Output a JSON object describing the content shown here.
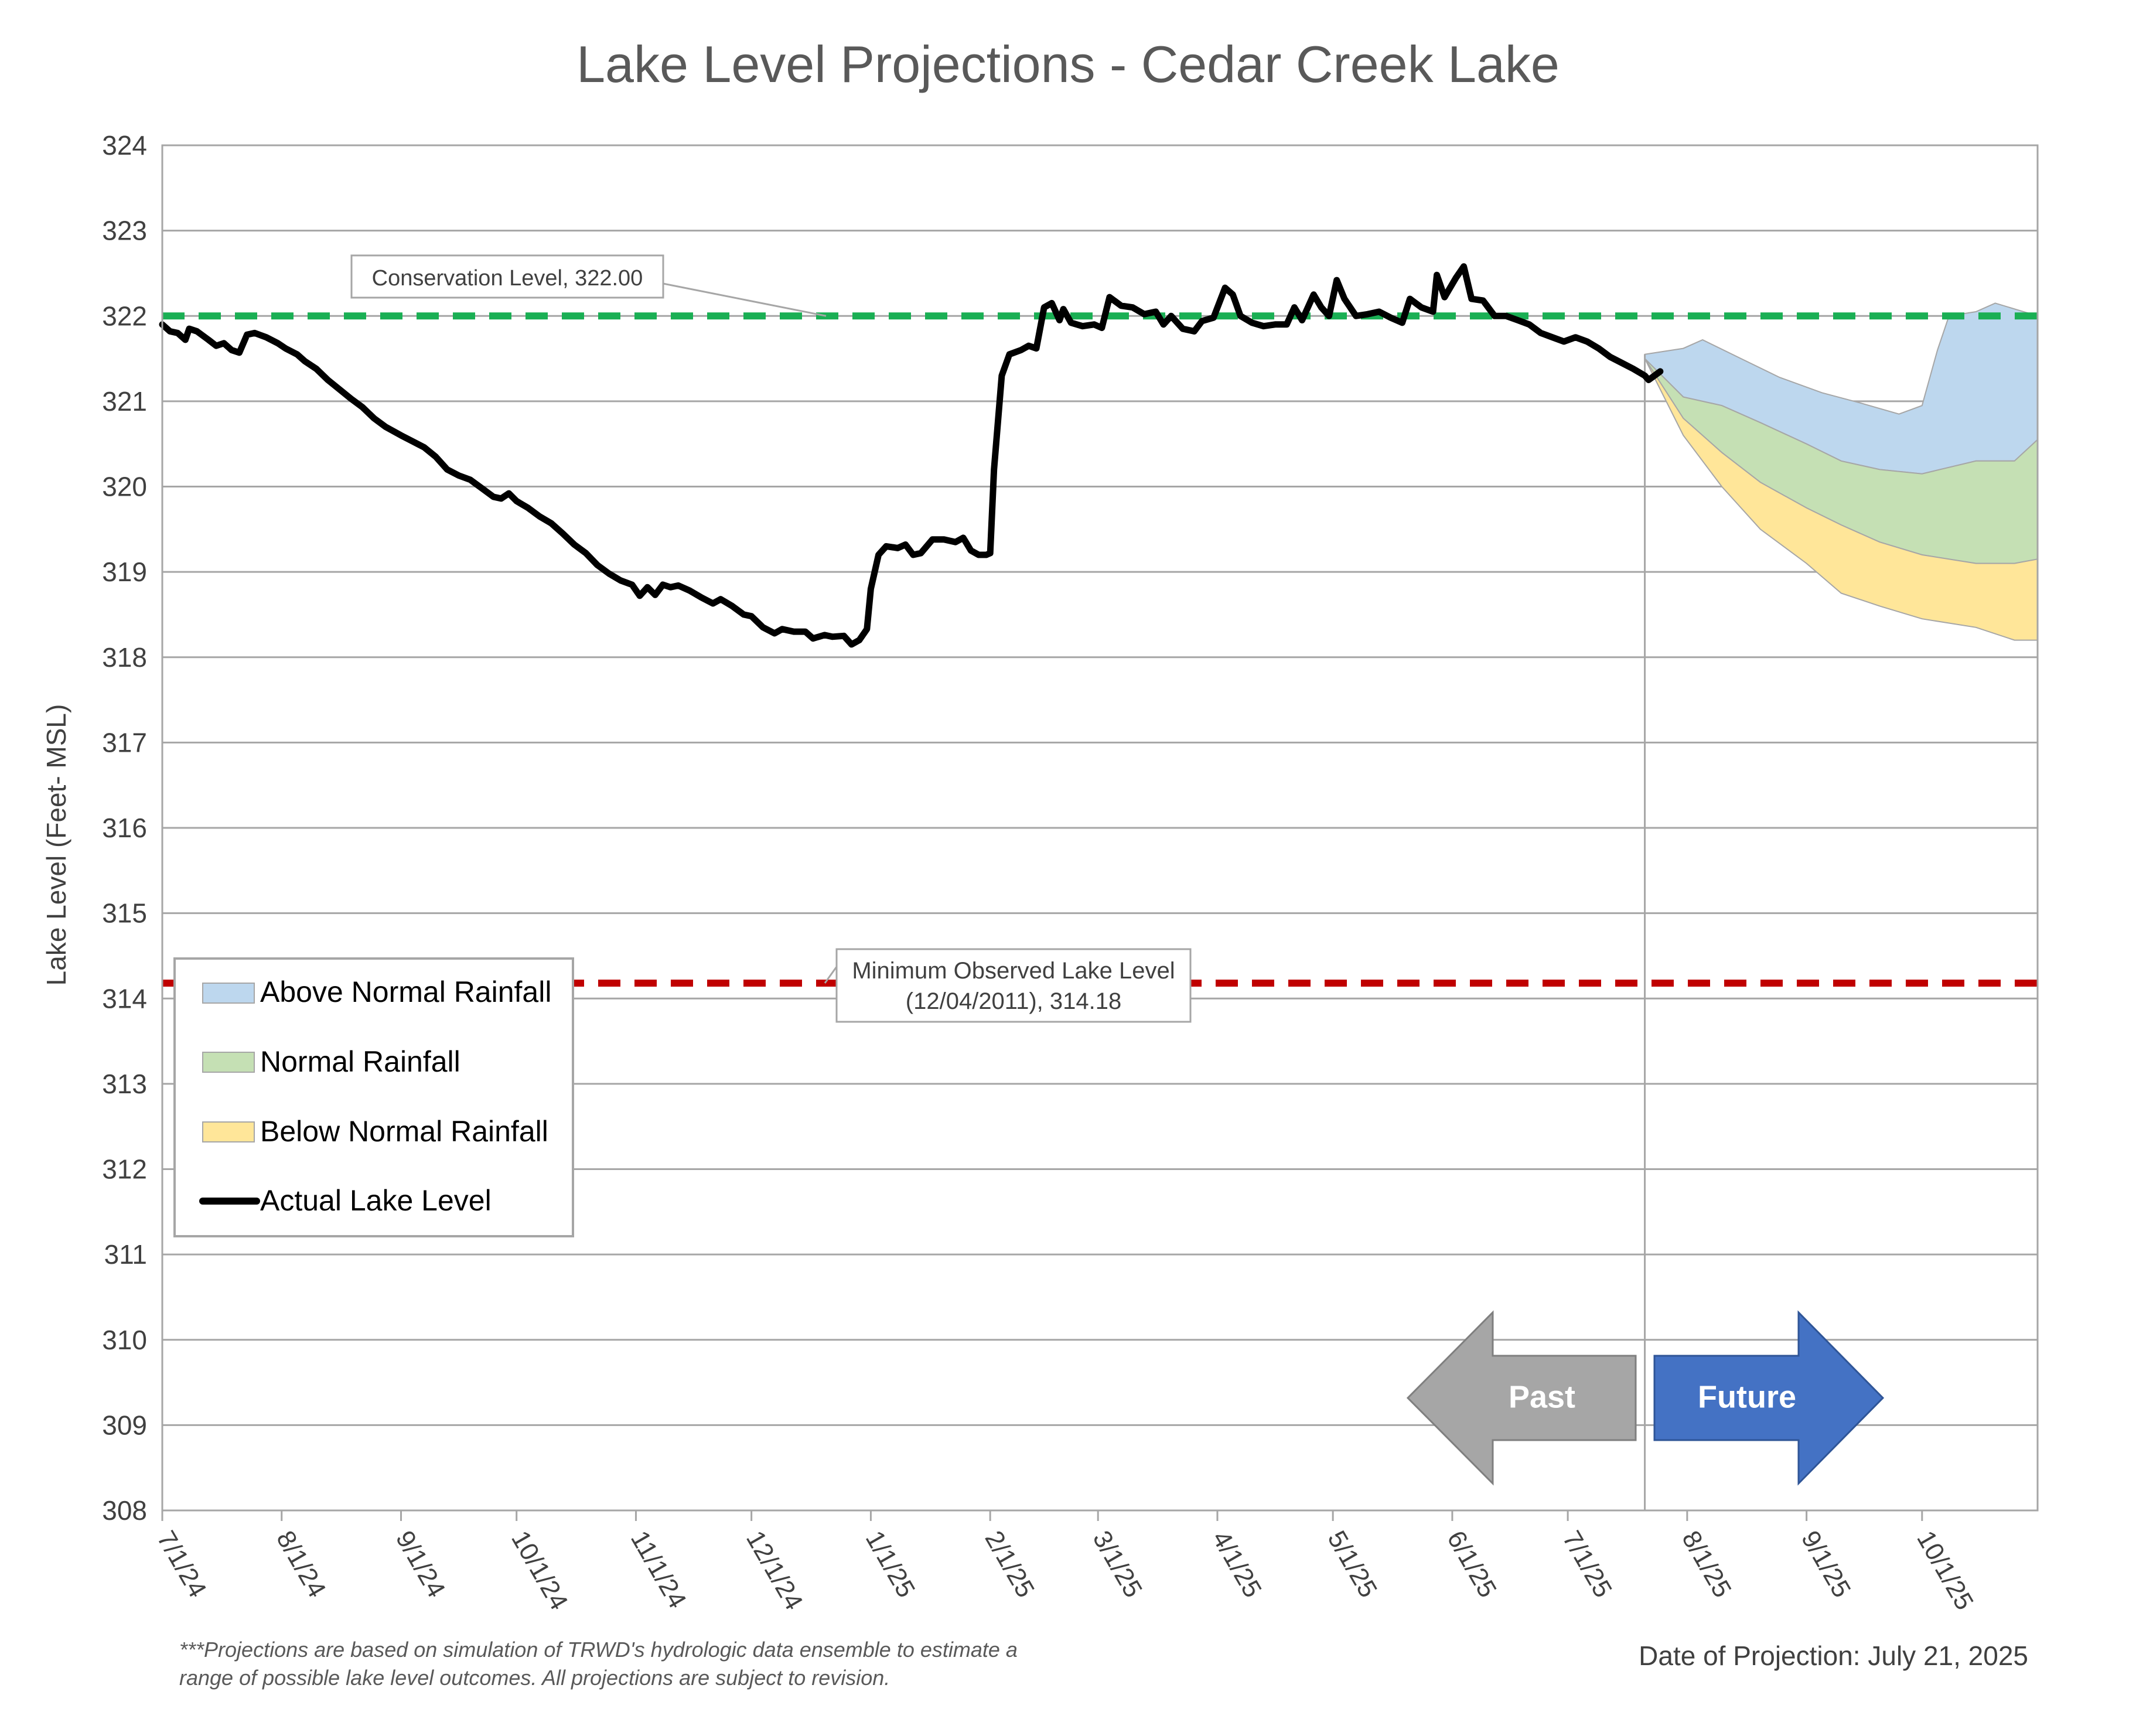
{
  "chart_data": {
    "type": "area",
    "title": "Lake Level Projections - Cedar Creek Lake",
    "ylabel": "Lake Level (Feet- MSL)",
    "xlabel": "",
    "ylim": [
      308,
      324
    ],
    "yticks": [
      308,
      309,
      310,
      311,
      312,
      313,
      314,
      315,
      316,
      317,
      318,
      319,
      320,
      321,
      322,
      323,
      324
    ],
    "xlim": [
      "2024-07-01",
      "2025-10-31"
    ],
    "x_ticks": [
      {
        "date": "2024-07-01",
        "label": "7/1/24"
      },
      {
        "date": "2024-08-01",
        "label": "8/1/24"
      },
      {
        "date": "2024-09-01",
        "label": "9/1/24"
      },
      {
        "date": "2024-10-01",
        "label": "10/1/24"
      },
      {
        "date": "2024-11-01",
        "label": "11/1/24"
      },
      {
        "date": "2024-12-01",
        "label": "12/1/24"
      },
      {
        "date": "2025-01-01",
        "label": "1/1/25"
      },
      {
        "date": "2025-02-01",
        "label": "2/1/25"
      },
      {
        "date": "2025-03-01",
        "label": "3/1/25"
      },
      {
        "date": "2025-04-01",
        "label": "4/1/25"
      },
      {
        "date": "2025-05-01",
        "label": "5/1/25"
      },
      {
        "date": "2025-06-01",
        "label": "6/1/25"
      },
      {
        "date": "2025-07-01",
        "label": "7/1/25"
      },
      {
        "date": "2025-08-01",
        "label": "8/1/25"
      },
      {
        "date": "2025-09-01",
        "label": "9/1/25"
      },
      {
        "date": "2025-10-01",
        "label": "10/1/25"
      }
    ],
    "grid": "horizontal",
    "legend_position": "bottom-left",
    "reference_lines": [
      {
        "name": "Conservation Level",
        "value": 322.0,
        "color": "#1aaf54",
        "style": "dashed",
        "annotation": "Conservation Level, 322.00"
      },
      {
        "name": "Minimum Observed Lake Level",
        "value": 314.18,
        "color": "#c00000",
        "style": "dashed",
        "annotation_line1": "Minimum Observed Lake Level",
        "annotation_line2": "(12/04/2011), 314.18"
      }
    ],
    "projection_date": "2025-07-21",
    "series": [
      {
        "name": "Actual Lake Level",
        "type": "line",
        "color": "#000000",
        "points": [
          [
            "2024-07-01",
            321.9
          ],
          [
            "2024-07-03",
            321.82
          ],
          [
            "2024-07-05",
            321.8
          ],
          [
            "2024-07-07",
            321.72
          ],
          [
            "2024-07-08",
            321.85
          ],
          [
            "2024-07-10",
            321.82
          ],
          [
            "2024-07-13",
            321.72
          ],
          [
            "2024-07-15",
            321.65
          ],
          [
            "2024-07-17",
            321.68
          ],
          [
            "2024-07-19",
            321.6
          ],
          [
            "2024-07-21",
            321.57
          ],
          [
            "2024-07-23",
            321.78
          ],
          [
            "2024-07-25",
            321.8
          ],
          [
            "2024-07-28",
            321.75
          ],
          [
            "2024-07-31",
            321.68
          ],
          [
            "2024-08-02",
            321.62
          ],
          [
            "2024-08-05",
            321.55
          ],
          [
            "2024-08-07",
            321.47
          ],
          [
            "2024-08-10",
            321.38
          ],
          [
            "2024-08-13",
            321.25
          ],
          [
            "2024-08-16",
            321.14
          ],
          [
            "2024-08-19",
            321.03
          ],
          [
            "2024-08-22",
            320.93
          ],
          [
            "2024-08-25",
            320.8
          ],
          [
            "2024-08-28",
            320.7
          ],
          [
            "2024-09-01",
            320.6
          ],
          [
            "2024-09-04",
            320.53
          ],
          [
            "2024-09-07",
            320.46
          ],
          [
            "2024-09-10",
            320.35
          ],
          [
            "2024-09-13",
            320.2
          ],
          [
            "2024-09-16",
            320.13
          ],
          [
            "2024-09-19",
            320.08
          ],
          [
            "2024-09-22",
            319.98
          ],
          [
            "2024-09-25",
            319.88
          ],
          [
            "2024-09-27",
            319.86
          ],
          [
            "2024-09-29",
            319.92
          ],
          [
            "2024-10-01",
            319.83
          ],
          [
            "2024-10-04",
            319.75
          ],
          [
            "2024-10-07",
            319.65
          ],
          [
            "2024-10-10",
            319.57
          ],
          [
            "2024-10-13",
            319.45
          ],
          [
            "2024-10-16",
            319.32
          ],
          [
            "2024-10-19",
            319.22
          ],
          [
            "2024-10-22",
            319.08
          ],
          [
            "2024-10-25",
            318.98
          ],
          [
            "2024-10-28",
            318.9
          ],
          [
            "2024-10-31",
            318.85
          ],
          [
            "2024-11-02",
            318.72
          ],
          [
            "2024-11-04",
            318.82
          ],
          [
            "2024-11-06",
            318.73
          ],
          [
            "2024-11-08",
            318.85
          ],
          [
            "2024-11-10",
            318.82
          ],
          [
            "2024-11-12",
            318.84
          ],
          [
            "2024-11-15",
            318.78
          ],
          [
            "2024-11-18",
            318.7
          ],
          [
            "2024-11-21",
            318.63
          ],
          [
            "2024-11-23",
            318.68
          ],
          [
            "2024-11-26",
            318.6
          ],
          [
            "2024-11-29",
            318.5
          ],
          [
            "2024-12-01",
            318.48
          ],
          [
            "2024-12-04",
            318.35
          ],
          [
            "2024-12-07",
            318.28
          ],
          [
            "2024-12-09",
            318.33
          ],
          [
            "2024-12-12",
            318.3
          ],
          [
            "2024-12-15",
            318.3
          ],
          [
            "2024-12-17",
            318.22
          ],
          [
            "2024-12-20",
            318.26
          ],
          [
            "2024-12-22",
            318.24
          ],
          [
            "2024-12-25",
            318.25
          ],
          [
            "2024-12-27",
            318.15
          ],
          [
            "2024-12-29",
            318.2
          ],
          [
            "2024-12-31",
            318.33
          ],
          [
            "2025-01-01",
            318.8
          ],
          [
            "2025-01-03",
            319.2
          ],
          [
            "2025-01-05",
            319.3
          ],
          [
            "2025-01-08",
            319.28
          ],
          [
            "2025-01-10",
            319.32
          ],
          [
            "2025-01-12",
            319.2
          ],
          [
            "2025-01-14",
            319.22
          ],
          [
            "2025-01-17",
            319.38
          ],
          [
            "2025-01-20",
            319.38
          ],
          [
            "2025-01-23",
            319.35
          ],
          [
            "2025-01-25",
            319.4
          ],
          [
            "2025-01-27",
            319.25
          ],
          [
            "2025-01-29",
            319.2
          ],
          [
            "2025-01-31",
            319.2
          ],
          [
            "2025-02-01",
            319.22
          ],
          [
            "2025-02-02",
            320.2
          ],
          [
            "2025-02-04",
            321.3
          ],
          [
            "2025-02-06",
            321.55
          ],
          [
            "2025-02-09",
            321.6
          ],
          [
            "2025-02-11",
            321.65
          ],
          [
            "2025-02-13",
            321.62
          ],
          [
            "2025-02-15",
            322.1
          ],
          [
            "2025-02-17",
            322.15
          ],
          [
            "2025-02-19",
            321.95
          ],
          [
            "2025-02-20",
            322.08
          ],
          [
            "2025-02-22",
            321.92
          ],
          [
            "2025-02-25",
            321.88
          ],
          [
            "2025-02-28",
            321.9
          ],
          [
            "2025-03-02",
            321.86
          ],
          [
            "2025-03-04",
            322.22
          ],
          [
            "2025-03-07",
            322.12
          ],
          [
            "2025-03-10",
            322.1
          ],
          [
            "2025-03-13",
            322.02
          ],
          [
            "2025-03-16",
            322.05
          ],
          [
            "2025-03-18",
            321.9
          ],
          [
            "2025-03-20",
            322.0
          ],
          [
            "2025-03-23",
            321.85
          ],
          [
            "2025-03-26",
            321.82
          ],
          [
            "2025-03-28",
            321.94
          ],
          [
            "2025-03-31",
            321.98
          ],
          [
            "2025-04-03",
            322.33
          ],
          [
            "2025-04-05",
            322.25
          ],
          [
            "2025-04-07",
            322.0
          ],
          [
            "2025-04-10",
            321.92
          ],
          [
            "2025-04-13",
            321.88
          ],
          [
            "2025-04-16",
            321.9
          ],
          [
            "2025-04-19",
            321.9
          ],
          [
            "2025-04-21",
            322.1
          ],
          [
            "2025-04-23",
            321.95
          ],
          [
            "2025-04-26",
            322.25
          ],
          [
            "2025-04-28",
            322.1
          ],
          [
            "2025-04-30",
            322.0
          ],
          [
            "2025-05-02",
            322.42
          ],
          [
            "2025-05-04",
            322.2
          ],
          [
            "2025-05-07",
            322.0
          ],
          [
            "2025-05-10",
            322.02
          ],
          [
            "2025-05-13",
            322.05
          ],
          [
            "2025-05-16",
            321.98
          ],
          [
            "2025-05-19",
            321.92
          ],
          [
            "2025-05-21",
            322.2
          ],
          [
            "2025-05-24",
            322.1
          ],
          [
            "2025-05-27",
            322.05
          ],
          [
            "2025-05-28",
            322.48
          ],
          [
            "2025-05-30",
            322.22
          ],
          [
            "2025-06-02",
            322.45
          ],
          [
            "2025-06-04",
            322.58
          ],
          [
            "2025-06-06",
            322.2
          ],
          [
            "2025-06-09",
            322.18
          ],
          [
            "2025-06-12",
            322.0
          ],
          [
            "2025-06-15",
            322.0
          ],
          [
            "2025-06-18",
            321.95
          ],
          [
            "2025-06-21",
            321.9
          ],
          [
            "2025-06-24",
            321.8
          ],
          [
            "2025-06-27",
            321.75
          ],
          [
            "2025-06-30",
            321.7
          ],
          [
            "2025-07-03",
            321.75
          ],
          [
            "2025-07-06",
            321.7
          ],
          [
            "2025-07-09",
            321.62
          ],
          [
            "2025-07-12",
            321.52
          ],
          [
            "2025-07-15",
            321.45
          ],
          [
            "2025-07-18",
            321.38
          ],
          [
            "2025-07-21",
            321.3
          ],
          [
            "2025-07-22",
            321.25
          ],
          [
            "2025-07-25",
            321.35
          ]
        ]
      },
      {
        "name": "Above Normal Rainfall",
        "type": "band",
        "color": "#bdd7ee",
        "upper": [
          [
            "2025-07-21",
            321.55
          ],
          [
            "2025-07-31",
            321.62
          ],
          [
            "2025-08-05",
            321.72
          ],
          [
            "2025-08-15",
            321.5
          ],
          [
            "2025-08-25",
            321.28
          ],
          [
            "2025-09-05",
            321.1
          ],
          [
            "2025-09-15",
            320.98
          ],
          [
            "2025-09-25",
            320.85
          ],
          [
            "2025-10-01",
            320.95
          ],
          [
            "2025-10-05",
            321.6
          ],
          [
            "2025-10-08",
            322.0
          ],
          [
            "2025-10-15",
            322.05
          ],
          [
            "2025-10-20",
            322.15
          ],
          [
            "2025-10-31",
            322.0
          ]
        ],
        "lower": [
          [
            "2025-07-21",
            321.5
          ],
          [
            "2025-07-31",
            321.05
          ],
          [
            "2025-08-10",
            320.95
          ],
          [
            "2025-08-20",
            320.75
          ],
          [
            "2025-09-01",
            320.5
          ],
          [
            "2025-09-10",
            320.3
          ],
          [
            "2025-09-20",
            320.2
          ],
          [
            "2025-10-01",
            320.15
          ],
          [
            "2025-10-15",
            320.3
          ],
          [
            "2025-10-25",
            320.3
          ],
          [
            "2025-10-31",
            320.55
          ]
        ]
      },
      {
        "name": "Normal Rainfall",
        "type": "band",
        "color": "#c5e0b4",
        "upper": [
          [
            "2025-07-21",
            321.5
          ],
          [
            "2025-07-31",
            321.05
          ],
          [
            "2025-08-10",
            320.95
          ],
          [
            "2025-08-20",
            320.75
          ],
          [
            "2025-09-01",
            320.5
          ],
          [
            "2025-09-10",
            320.3
          ],
          [
            "2025-09-20",
            320.2
          ],
          [
            "2025-10-01",
            320.15
          ],
          [
            "2025-10-15",
            320.3
          ],
          [
            "2025-10-25",
            320.3
          ],
          [
            "2025-10-31",
            320.55
          ]
        ],
        "lower": [
          [
            "2025-07-21",
            321.5
          ],
          [
            "2025-07-31",
            320.8
          ],
          [
            "2025-08-10",
            320.4
          ],
          [
            "2025-08-20",
            320.05
          ],
          [
            "2025-09-01",
            319.75
          ],
          [
            "2025-09-10",
            319.55
          ],
          [
            "2025-09-20",
            319.35
          ],
          [
            "2025-10-01",
            319.2
          ],
          [
            "2025-10-15",
            319.1
          ],
          [
            "2025-10-25",
            319.1
          ],
          [
            "2025-10-31",
            319.15
          ]
        ]
      },
      {
        "name": "Below Normal Rainfall",
        "type": "band",
        "color": "#ffe699",
        "upper": [
          [
            "2025-07-21",
            321.5
          ],
          [
            "2025-07-31",
            320.8
          ],
          [
            "2025-08-10",
            320.4
          ],
          [
            "2025-08-20",
            320.05
          ],
          [
            "2025-09-01",
            319.75
          ],
          [
            "2025-09-10",
            319.55
          ],
          [
            "2025-09-20",
            319.35
          ],
          [
            "2025-10-01",
            319.2
          ],
          [
            "2025-10-15",
            319.1
          ],
          [
            "2025-10-25",
            319.1
          ],
          [
            "2025-10-31",
            319.15
          ]
        ],
        "lower": [
          [
            "2025-07-21",
            321.5
          ],
          [
            "2025-07-31",
            320.6
          ],
          [
            "2025-08-10",
            320.0
          ],
          [
            "2025-08-20",
            319.5
          ],
          [
            "2025-09-01",
            319.1
          ],
          [
            "2025-09-10",
            318.75
          ],
          [
            "2025-09-20",
            318.6
          ],
          [
            "2025-10-01",
            318.45
          ],
          [
            "2025-10-15",
            318.35
          ],
          [
            "2025-10-25",
            318.2
          ],
          [
            "2025-10-31",
            318.2
          ]
        ]
      }
    ],
    "legend": [
      {
        "label": "Above Normal Rainfall",
        "kind": "swatch",
        "color": "#bdd7ee"
      },
      {
        "label": "Normal Rainfall",
        "kind": "swatch",
        "color": "#c5e0b4"
      },
      {
        "label": "Below Normal Rainfall",
        "kind": "swatch",
        "color": "#ffe699"
      },
      {
        "label": "Actual Lake Level",
        "kind": "line",
        "color": "#000000"
      }
    ],
    "arrows": {
      "past": {
        "label": "Past",
        "color": "#a6a6a6"
      },
      "future": {
        "label": "Future",
        "color": "#4472c4"
      }
    },
    "footnote_line1": "***Projections are based on simulation of TRWD's hydrologic data ensemble to estimate a",
    "footnote_line2": "range of possible lake level outcomes.  All projections are subject to revision.",
    "projection_date_label": "Date of Projection: July 21, 2025"
  }
}
